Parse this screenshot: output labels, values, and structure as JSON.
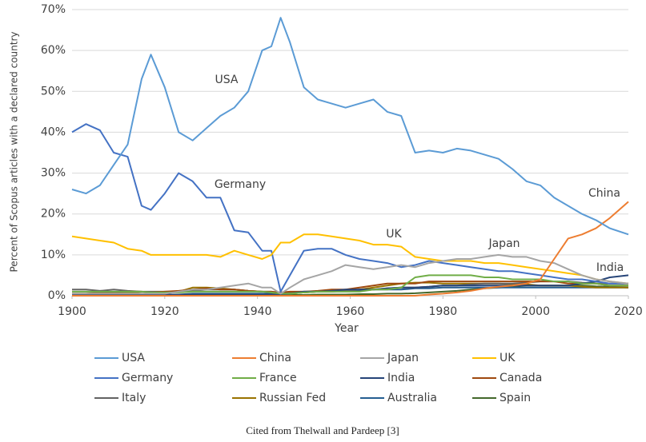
{
  "chart_data": {
    "type": "line",
    "xlabel": "Year",
    "ylabel": "Percent of Scopus articles with a declared country",
    "caption": "Cited from Thelwall and Pardeep [3]",
    "annotations": [
      "USA",
      "Germany",
      "UK",
      "Japan",
      "China",
      "India"
    ],
    "grid": true,
    "legend": "bottom",
    "xlim": [
      1900,
      2020
    ],
    "xticks": [
      1900,
      1920,
      1940,
      1960,
      1980,
      2000,
      2020
    ],
    "ylim": [
      0,
      70
    ],
    "yticks": [
      {
        "value": 0,
        "label": "0%"
      },
      {
        "value": 10,
        "label": "10%"
      },
      {
        "value": 20,
        "label": "20%"
      },
      {
        "value": 30,
        "label": "30%"
      },
      {
        "value": 40,
        "label": "40%"
      },
      {
        "value": 50,
        "label": "50%"
      },
      {
        "value": 60,
        "label": "60%"
      },
      {
        "value": 70,
        "label": "70%"
      }
    ],
    "x": [
      1900,
      1903,
      1906,
      1909,
      1912,
      1915,
      1917,
      1920,
      1923,
      1926,
      1929,
      1932,
      1935,
      1938,
      1941,
      1943,
      1945,
      1947,
      1950,
      1953,
      1956,
      1959,
      1962,
      1965,
      1968,
      1971,
      1974,
      1977,
      1980,
      1983,
      1986,
      1989,
      1992,
      1995,
      1998,
      2001,
      2004,
      2007,
      2010,
      2013,
      2016,
      2020
    ],
    "series": [
      {
        "name": "USA",
        "color": "#5b9bd5",
        "values": [
          26,
          25,
          27,
          32,
          37,
          53,
          59,
          51,
          40,
          38,
          41,
          44,
          46,
          50,
          60,
          61,
          68,
          62,
          51,
          48,
          47,
          46,
          47,
          48,
          45,
          44,
          35,
          35.5,
          35,
          36,
          35.5,
          34.5,
          33.5,
          31,
          28,
          27,
          24,
          22,
          20,
          18.5,
          16.5,
          15
        ]
      },
      {
        "name": "China",
        "color": "#ed7d31",
        "values": [
          0,
          0,
          0,
          0,
          0,
          0,
          0,
          0,
          0,
          0,
          0,
          0,
          0,
          0,
          0,
          0,
          0,
          0,
          0,
          0,
          0,
          0,
          0,
          0,
          0,
          0,
          0,
          0.3,
          0.5,
          0.8,
          1.2,
          1.8,
          2.2,
          2.5,
          3,
          4,
          9,
          14,
          15,
          16.5,
          19,
          23
        ]
      },
      {
        "name": "Japan",
        "color": "#a5a5a5",
        "values": [
          0.5,
          0.5,
          0.5,
          0.5,
          0.5,
          0.5,
          0.5,
          0.5,
          1,
          1.5,
          1.5,
          2,
          2.5,
          3,
          2,
          2,
          0.5,
          2,
          4,
          5,
          6,
          7.5,
          7,
          6.5,
          7,
          7.5,
          7,
          8,
          8.5,
          9,
          9,
          9.5,
          10,
          9.5,
          9.5,
          8.5,
          8,
          6.5,
          5,
          4,
          3.5,
          3
        ]
      },
      {
        "name": "UK",
        "color": "#ffc000",
        "values": [
          14.5,
          14,
          13.5,
          13,
          11.5,
          11,
          10,
          10,
          10,
          10,
          10,
          9.5,
          11,
          10,
          9,
          10,
          13,
          13,
          15,
          15,
          14.5,
          14,
          13.5,
          12.5,
          12.5,
          12,
          9.5,
          9,
          8.5,
          8.5,
          8.5,
          8,
          8,
          7.5,
          7,
          6.5,
          6,
          5.5,
          5,
          4,
          3.5,
          3
        ]
      },
      {
        "name": "Germany",
        "color": "#4472c4",
        "values": [
          40,
          42,
          40.5,
          35,
          34,
          22,
          21,
          25,
          30,
          28,
          24,
          24,
          16,
          15.5,
          11,
          11,
          1,
          5,
          11,
          11.5,
          11.5,
          10,
          9,
          8.5,
          8,
          7,
          7.5,
          8.5,
          8,
          7.5,
          7,
          6.5,
          6,
          6,
          5.5,
          5,
          4.5,
          4,
          4,
          3.5,
          3,
          3
        ]
      },
      {
        "name": "France",
        "color": "#70ad47",
        "values": [
          1,
          1,
          1,
          1,
          1,
          1,
          0.8,
          0.8,
          0.8,
          1,
          1,
          1,
          1,
          1,
          1,
          0.8,
          0.5,
          0.5,
          0.8,
          1,
          1,
          1,
          1,
          1.5,
          1.5,
          2,
          4.5,
          5,
          5,
          5,
          5,
          4.5,
          4.5,
          4,
          4,
          4,
          3.5,
          3.5,
          3,
          3,
          2.5,
          2.5
        ]
      },
      {
        "name": "India",
        "color": "#264478",
        "values": [
          0.3,
          0.3,
          0.3,
          0.3,
          0.3,
          0.3,
          0.3,
          0.3,
          0.3,
          0.3,
          0.3,
          0.3,
          0.3,
          0.3,
          0.3,
          0.3,
          0.3,
          0.5,
          1,
          1,
          1.2,
          1.5,
          1.5,
          1.5,
          1.8,
          2,
          2,
          2.2,
          2.5,
          2.5,
          2.5,
          2.5,
          2.5,
          2.5,
          2.5,
          2.5,
          2.5,
          2.5,
          3,
          3.5,
          4.5,
          5
        ]
      },
      {
        "name": "Canada",
        "color": "#9e480e",
        "values": [
          0.5,
          0.5,
          0.8,
          0.8,
          1,
          1,
          0.8,
          1,
          1.2,
          1.5,
          1.8,
          1.5,
          1.5,
          1.2,
          1,
          1,
          0.8,
          1,
          1,
          1.2,
          1.5,
          1.5,
          2,
          2.5,
          3,
          3,
          3,
          3.5,
          3.5,
          3.5,
          3.5,
          3.5,
          3.5,
          3.5,
          3.5,
          3.5,
          3.5,
          3,
          3,
          3,
          2.5,
          2.5
        ]
      },
      {
        "name": "Italy",
        "color": "#636363",
        "values": [
          1.5,
          1.5,
          1.2,
          1.5,
          1.2,
          1,
          1,
          1,
          1,
          1.2,
          1.5,
          1.5,
          1.5,
          1.2,
          1,
          1,
          0.5,
          0.8,
          1,
          1,
          1.2,
          1.2,
          1.5,
          1.5,
          1.8,
          2,
          2,
          2.2,
          2.5,
          2.5,
          2.8,
          3,
          3,
          3,
          3.2,
          3.5,
          3.5,
          3.5,
          3.2,
          3,
          3,
          3
        ]
      },
      {
        "name": "Russian Fed",
        "color": "#997300",
        "values": [
          0.5,
          0.5,
          0.5,
          0.8,
          0.8,
          0.5,
          0.5,
          0.8,
          1,
          2,
          2,
          1.8,
          1.5,
          1.2,
          1,
          0.8,
          0.3,
          0.5,
          0.8,
          1,
          1,
          1.2,
          1.5,
          2,
          2.5,
          3,
          3.2,
          3.2,
          3,
          3,
          3,
          3,
          3,
          2.8,
          2.8,
          2.5,
          2.5,
          2.5,
          2.2,
          2,
          2,
          2
        ]
      },
      {
        "name": "Australia",
        "color": "#255e91",
        "values": [
          0.3,
          0.3,
          0.3,
          0.3,
          0.3,
          0.3,
          0.3,
          0.3,
          0.3,
          0.5,
          0.5,
          0.5,
          0.5,
          0.5,
          0.5,
          0.5,
          0.3,
          0.5,
          0.8,
          1,
          1,
          1.2,
          1.2,
          1.5,
          1.5,
          1.5,
          1.8,
          1.8,
          2,
          2,
          2,
          2,
          2,
          2,
          2,
          2,
          2,
          2,
          2,
          2,
          2,
          2
        ]
      },
      {
        "name": "Spain",
        "color": "#43682b",
        "values": [
          0.2,
          0.2,
          0.2,
          0.2,
          0.2,
          0.2,
          0.2,
          0.2,
          0.2,
          0.2,
          0.2,
          0.2,
          0.2,
          0.2,
          0.2,
          0.2,
          0.2,
          0.2,
          0.2,
          0.3,
          0.3,
          0.3,
          0.4,
          0.4,
          0.5,
          0.5,
          0.6,
          0.8,
          1,
          1.2,
          1.5,
          1.8,
          2,
          2.2,
          2.5,
          2.5,
          2.5,
          2.5,
          2.5,
          2.3,
          2.2,
          2
        ]
      }
    ]
  }
}
